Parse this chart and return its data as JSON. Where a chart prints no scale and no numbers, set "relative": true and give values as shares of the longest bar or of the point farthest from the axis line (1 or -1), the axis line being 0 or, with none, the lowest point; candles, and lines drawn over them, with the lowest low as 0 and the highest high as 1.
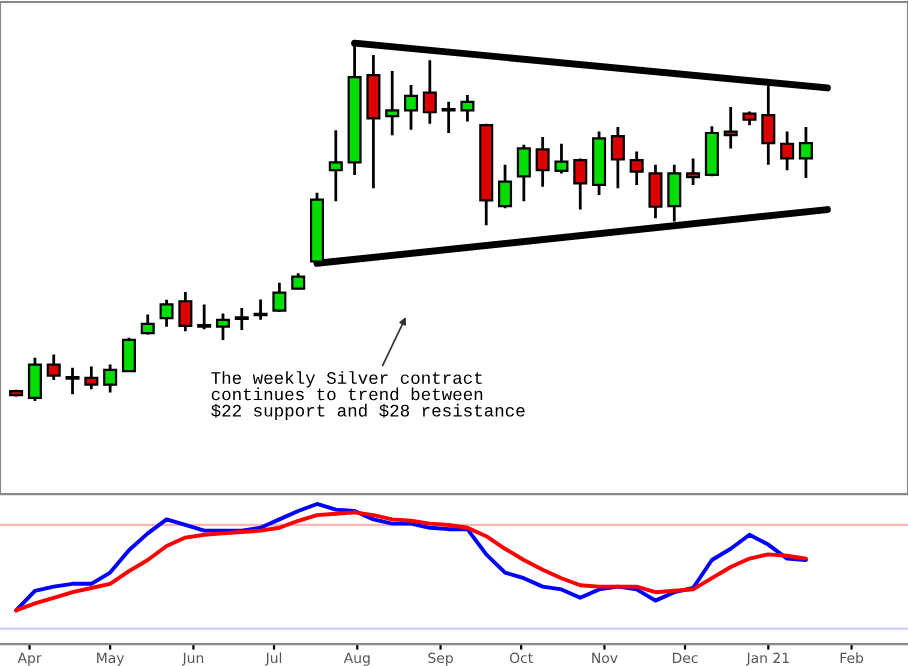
{
  "chart_data": [
    {
      "type": "candlestick",
      "relative": true,
      "tick_labels": false,
      "x": [
        "2020-03-27",
        "2020-04-03",
        "2020-04-10",
        "2020-04-17",
        "2020-04-24",
        "2020-05-01",
        "2020-05-08",
        "2020-05-15",
        "2020-05-22",
        "2020-05-29",
        "2020-06-05",
        "2020-06-12",
        "2020-06-19",
        "2020-06-26",
        "2020-07-03",
        "2020-07-10",
        "2020-07-17",
        "2020-07-24",
        "2020-07-31",
        "2020-08-07",
        "2020-08-14",
        "2020-08-21",
        "2020-08-28",
        "2020-09-04",
        "2020-09-11",
        "2020-09-18",
        "2020-09-25",
        "2020-10-02",
        "2020-10-09",
        "2020-10-16",
        "2020-10-23",
        "2020-10-30",
        "2020-11-06",
        "2020-11-13",
        "2020-11-20",
        "2020-11-27",
        "2020-12-04",
        "2020-12-11",
        "2020-12-18",
        "2020-12-25",
        "2021-01-01",
        "2021-01-08",
        "2021-01-15"
      ],
      "xlim": [
        "2020-03-21",
        "2021-02-22"
      ],
      "ohlc": [
        [
          0.028,
          0.032,
          0.013,
          0.017
        ],
        [
          0.009,
          0.121,
          0,
          0.102
        ],
        [
          0.102,
          0.13,
          0.059,
          0.071
        ],
        [
          0.063,
          0.093,
          0.019,
          0.067
        ],
        [
          0.065,
          0.097,
          0.033,
          0.046
        ],
        [
          0.046,
          0.102,
          0.024,
          0.087
        ],
        [
          0.084,
          0.177,
          0.082,
          0.171
        ],
        [
          0.19,
          0.242,
          0.186,
          0.216
        ],
        [
          0.232,
          0.283,
          0.208,
          0.27
        ],
        [
          0.279,
          0.305,
          0.195,
          0.21
        ],
        [
          0.208,
          0.27,
          0.201,
          0.212
        ],
        [
          0.208,
          0.245,
          0.171,
          0.227
        ],
        [
          0.23,
          0.26,
          0.199,
          0.234
        ],
        [
          0.24,
          0.284,
          0.227,
          0.243
        ],
        [
          0.253,
          0.331,
          0.249,
          0.303
        ],
        [
          0.314,
          0.357,
          0.312,
          0.348
        ],
        [
          0.39,
          0.582,
          0.387,
          0.563
        ],
        [
          0.645,
          0.757,
          0.558,
          0.667
        ],
        [
          0.667,
          1,
          0.632,
          0.905
        ],
        [
          0.911,
          0.967,
          0.595,
          0.79
        ],
        [
          0.796,
          0.922,
          0.743,
          0.812
        ],
        [
          0.812,
          0.883,
          0.758,
          0.853
        ],
        [
          0.862,
          0.952,
          0.775,
          0.807
        ],
        [
          0.816,
          0.836,
          0.749,
          0.812
        ],
        [
          0.812,
          0.855,
          0.781,
          0.836
        ],
        [
          0.771,
          0.775,
          0.491,
          0.561
        ],
        [
          0.545,
          0.66,
          0.539,
          0.613
        ],
        [
          0.628,
          0.716,
          0.558,
          0.706
        ],
        [
          0.703,
          0.738,
          0.599,
          0.645
        ],
        [
          0.643,
          0.719,
          0.636,
          0.669
        ],
        [
          0.673,
          0.678,
          0.535,
          0.608
        ],
        [
          0.604,
          0.753,
          0.576,
          0.734
        ],
        [
          0.74,
          0.766,
          0.595,
          0.675
        ],
        [
          0.673,
          0.697,
          0.604,
          0.641
        ],
        [
          0.636,
          0.66,
          0.511,
          0.543
        ],
        [
          0.545,
          0.66,
          0.502,
          0.636
        ],
        [
          0.636,
          0.678,
          0.604,
          0.626
        ],
        [
          0.632,
          0.768,
          0.628,
          0.749
        ],
        [
          0.753,
          0.822,
          0.706,
          0.743
        ],
        [
          0.803,
          0.809,
          0.771,
          0.786
        ],
        [
          0.799,
          0.883,
          0.66,
          0.721
        ],
        [
          0.719,
          0.753,
          0.645,
          0.678
        ],
        [
          0.678,
          0.766,
          0.623,
          0.721
        ]
      ],
      "series": [
        {
          "type": "line",
          "color": "#000000",
          "x": [
            "2020-07-31",
            "2021-01-23"
          ],
          "values": [
            1,
            0.875
          ]
        },
        {
          "type": "line",
          "color": "#000000",
          "x": [
            "2020-07-17",
            "2021-01-23"
          ],
          "values": [
            0.385,
            0.535
          ]
        }
      ],
      "annotations": [
        "The weekly Silver contract\ncontinues to trend between\n$22 support and $28 resistance"
      ]
    },
    {
      "type": "line",
      "relative": true,
      "tick_labels": "x",
      "x": [
        "2020-03-27",
        "2020-04-03",
        "2020-04-10",
        "2020-04-17",
        "2020-04-24",
        "2020-05-01",
        "2020-05-08",
        "2020-05-15",
        "2020-05-22",
        "2020-05-29",
        "2020-06-05",
        "2020-06-12",
        "2020-06-19",
        "2020-06-26",
        "2020-07-03",
        "2020-07-10",
        "2020-07-17",
        "2020-07-24",
        "2020-07-31",
        "2020-08-07",
        "2020-08-14",
        "2020-08-21",
        "2020-08-28",
        "2020-09-04",
        "2020-09-11",
        "2020-09-18",
        "2020-09-25",
        "2020-10-02",
        "2020-10-09",
        "2020-10-16",
        "2020-10-23",
        "2020-10-30",
        "2020-11-06",
        "2020-11-13",
        "2020-11-20",
        "2020-11-27",
        "2020-12-04",
        "2020-12-11",
        "2020-12-18",
        "2020-12-25",
        "2021-01-01",
        "2021-01-08",
        "2021-01-15"
      ],
      "xlim": [
        "2020-03-21",
        "2021-02-22"
      ],
      "xticks": [
        {
          "value": "2020-04-01",
          "label": "Apr"
        },
        {
          "value": "2020-05-01",
          "label": "May"
        },
        {
          "value": "2020-06-01",
          "label": "Jun"
        },
        {
          "value": "2020-07-01",
          "label": "Jul"
        },
        {
          "value": "2020-08-01",
          "label": "Aug"
        },
        {
          "value": "2020-09-01",
          "label": "Sep"
        },
        {
          "value": "2020-10-01",
          "label": "Oct"
        },
        {
          "value": "2020-11-01",
          "label": "Nov"
        },
        {
          "value": "2020-12-01",
          "label": "Dec"
        },
        {
          "value": "2021-01-01",
          "label": "Jan 21"
        },
        {
          "value": "2021-02-01",
          "label": "Feb"
        }
      ],
      "series": [
        {
          "color": "#0000ff",
          "values": [
            0.24,
            0.38,
            0.41,
            0.43,
            0.43,
            0.51,
            0.67,
            0.79,
            0.89,
            0.85,
            0.81,
            0.81,
            0.81,
            0.83,
            0.89,
            0.95,
            1,
            0.96,
            0.95,
            0.89,
            0.86,
            0.86,
            0.83,
            0.82,
            0.82,
            0.64,
            0.51,
            0.47,
            0.41,
            0.39,
            0.33,
            0.39,
            0.41,
            0.39,
            0.31,
            0.37,
            0.4,
            0.6,
            0.68,
            0.78,
            0.71,
            0.61,
            0.6
          ]
        },
        {
          "color": "#ff0000",
          "values": [
            0.24,
            0.29,
            0.33,
            0.37,
            0.4,
            0.43,
            0.52,
            0.6,
            0.7,
            0.76,
            0.78,
            0.79,
            0.8,
            0.81,
            0.83,
            0.88,
            0.92,
            0.93,
            0.94,
            0.92,
            0.89,
            0.88,
            0.86,
            0.85,
            0.83,
            0.77,
            0.68,
            0.6,
            0.53,
            0.47,
            0.42,
            0.41,
            0.41,
            0.41,
            0.37,
            0.38,
            0.39,
            0.47,
            0.55,
            0.61,
            0.64,
            0.63,
            0.61
          ]
        }
      ],
      "ref_lines": [
        {
          "axis": "y",
          "value": 0.85,
          "color": "#ffb4b4"
        },
        {
          "axis": "y",
          "value": 0.11,
          "color": "#c8d0f4"
        }
      ]
    }
  ]
}
